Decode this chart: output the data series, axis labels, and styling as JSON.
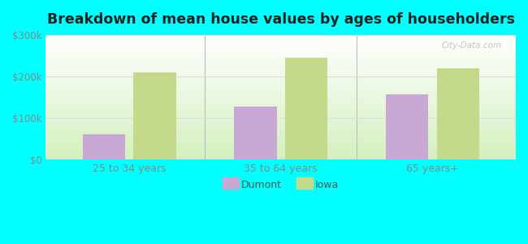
{
  "title": "Breakdown of mean house values by ages of householders",
  "categories": [
    "25 to 34 years",
    "35 to 64 years",
    "65 years+"
  ],
  "dumont_values": [
    62000,
    128000,
    158000
  ],
  "iowa_values": [
    210000,
    245000,
    220000
  ],
  "ylim": [
    0,
    300000
  ],
  "ytick_labels": [
    "$0",
    "$100k",
    "$200k",
    "$300k"
  ],
  "ytick_values": [
    0,
    100000,
    200000,
    300000
  ],
  "bar_color_dumont": "#c9a8d4",
  "bar_color_iowa": "#c5d98a",
  "figure_bg_color": "#00ffff",
  "plot_bg_top": "#edfce8",
  "plot_bg_bottom": "#f5fef0",
  "legend_labels": [
    "Dumont",
    "Iowa"
  ],
  "bar_width": 0.28,
  "title_fontsize": 12.5,
  "tick_color": "#888888",
  "watermark": "City-Data.com",
  "divider_color": "#bbbbbb",
  "grid_color": "#dddddd"
}
